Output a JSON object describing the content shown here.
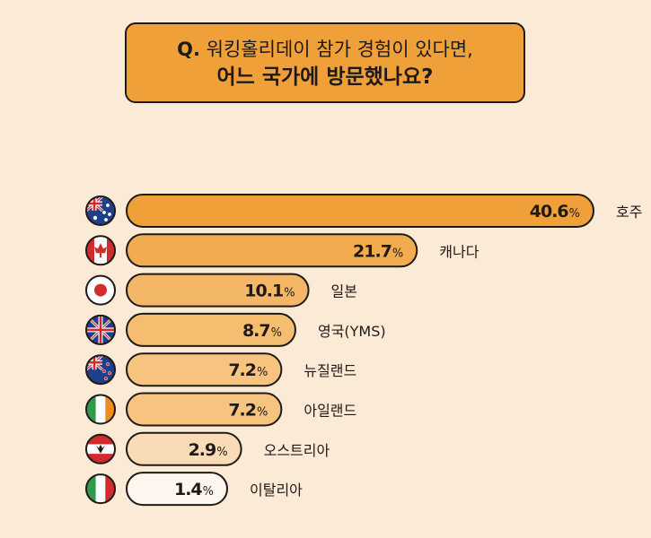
{
  "title": {
    "q_mark": "Q.",
    "line1": "워킹홀리데이 참가 경험이 있다면,",
    "line2": "어느 국가에 방문했나요?"
  },
  "colors": {
    "background": "#fbead6",
    "title_box": "#f0a038",
    "outline": "#1f1a17",
    "bar_fills": [
      "#f0a038",
      "#f2ab4f",
      "#f4b767",
      "#f5bd6f",
      "#f6c47f",
      "#f6c47f",
      "#f9dcb5",
      "#fdf7ef"
    ]
  },
  "chart_data": {
    "type": "bar",
    "orientation": "horizontal",
    "categories": [
      "호주",
      "캐나다",
      "일본",
      "영국(YMS)",
      "뉴질랜드",
      "아일랜드",
      "오스트리아",
      "이탈리아"
    ],
    "values": [
      40.6,
      21.7,
      10.1,
      8.7,
      7.2,
      7.2,
      2.9,
      1.4
    ],
    "value_labels": [
      "40.6",
      "21.7",
      "10.1",
      "8.7",
      "7.2",
      "7.2",
      "2.9",
      "1.4"
    ],
    "unit": "%",
    "flags": [
      "australia-flag-icon",
      "canada-flag-icon",
      "japan-flag-icon",
      "uk-flag-icon",
      "new-zealand-flag-icon",
      "ireland-flag-icon",
      "austria-flag-icon",
      "italy-flag-icon"
    ],
    "grid": false,
    "legend": "none"
  }
}
